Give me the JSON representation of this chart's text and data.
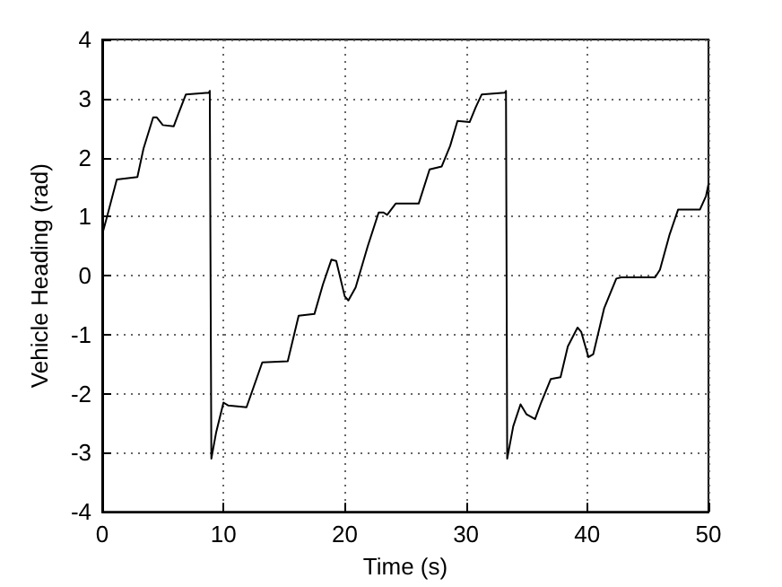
{
  "chart_data": {
    "type": "line",
    "xlabel": "Time (s)",
    "ylabel": "Vehicle Heading (rad)",
    "x": [
      0,
      0.4,
      1.2,
      2.9,
      3.4,
      4.2,
      4.5,
      5.0,
      5.9,
      6.3,
      6.9,
      8.8,
      8.87,
      9.0,
      9.4,
      10.0,
      10.4,
      11.9,
      13.2,
      15.3,
      16.2,
      17.5,
      18.2,
      18.9,
      19.3,
      20.0,
      20.3,
      20.9,
      21.9,
      22.8,
      23.2,
      23.5,
      24.2,
      26.1,
      27.0,
      28.0,
      28.7,
      29.3,
      30.3,
      30.8,
      31.3,
      33.2,
      33.3,
      33.4,
      33.9,
      34.5,
      35.0,
      35.7,
      36.2,
      37.0,
      37.8,
      38.4,
      39.2,
      39.5,
      40.1,
      40.5,
      41.4,
      42.4,
      42.8,
      45.6,
      46.0,
      46.8,
      47.5,
      49.3,
      49.8,
      50
    ],
    "series": [
      {
        "color": "#000000",
        "values": [
          0.7,
          1.0,
          1.63,
          1.67,
          2.15,
          2.68,
          2.68,
          2.55,
          2.53,
          2.75,
          3.07,
          3.1,
          3.13,
          -3.1,
          -2.65,
          -2.15,
          -2.2,
          -2.23,
          -1.47,
          -1.45,
          -0.68,
          -0.65,
          -0.15,
          0.27,
          0.25,
          -0.35,
          -0.42,
          -0.2,
          0.5,
          1.07,
          1.07,
          1.03,
          1.22,
          1.22,
          1.8,
          1.85,
          2.2,
          2.62,
          2.6,
          2.85,
          3.07,
          3.1,
          3.13,
          -3.1,
          -2.55,
          -2.18,
          -2.35,
          -2.43,
          -2.15,
          -1.75,
          -1.72,
          -1.2,
          -0.88,
          -0.95,
          -1.38,
          -1.33,
          -0.55,
          -0.05,
          -0.03,
          -0.03,
          0.1,
          0.7,
          1.12,
          1.12,
          1.35,
          1.55
        ]
      }
    ],
    "xlim": [
      0,
      50
    ],
    "xticks": [
      0,
      10,
      20,
      30,
      40,
      50
    ],
    "ylim": [
      -4,
      4
    ],
    "yticks": [
      -4,
      -3,
      -2,
      -1,
      0,
      1,
      2,
      3,
      4
    ],
    "grid": true,
    "marker": "none",
    "line_style": "solid"
  }
}
